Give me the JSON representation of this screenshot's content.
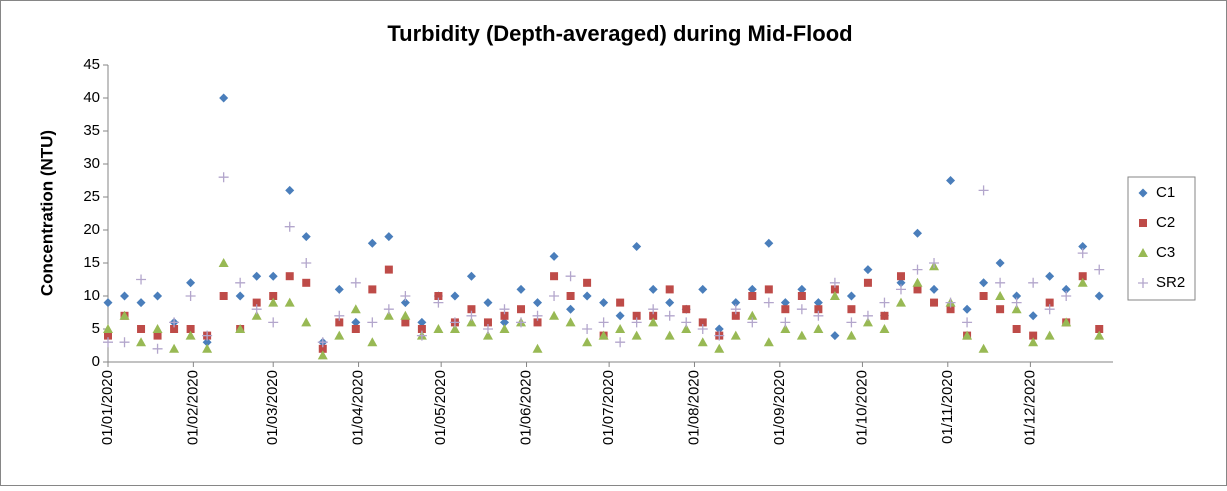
{
  "chart_data": {
    "type": "scatter",
    "title": "Turbidity (Depth-averaged) during Mid-Flood",
    "y_label": "Concentration (NTU)",
    "x": [
      "01/01/2020",
      "07/01/2020",
      "13/01/2020",
      "19/01/2020",
      "25/01/2020",
      "31/01/2020",
      "06/02/2020",
      "12/02/2020",
      "18/02/2020",
      "24/02/2020",
      "01/03/2020",
      "07/03/2020",
      "13/03/2020",
      "19/03/2020",
      "25/03/2020",
      "31/03/2020",
      "06/04/2020",
      "12/04/2020",
      "18/04/2020",
      "24/04/2020",
      "30/04/2020",
      "06/05/2020",
      "12/05/2020",
      "18/05/2020",
      "24/05/2020",
      "30/05/2020",
      "05/06/2020",
      "11/06/2020",
      "17/06/2020",
      "23/06/2020",
      "29/06/2020",
      "05/07/2020",
      "11/07/2020",
      "17/07/2020",
      "23/07/2020",
      "29/07/2020",
      "04/08/2020",
      "10/08/2020",
      "16/08/2020",
      "22/08/2020",
      "28/08/2020",
      "03/09/2020",
      "09/09/2020",
      "15/09/2020",
      "21/09/2020",
      "27/09/2020",
      "03/10/2020",
      "09/10/2020",
      "15/10/2020",
      "21/10/2020",
      "27/10/2020",
      "02/11/2020",
      "08/11/2020",
      "14/11/2020",
      "20/11/2020",
      "26/11/2020",
      "02/12/2020",
      "08/12/2020",
      "14/12/2020",
      "20/12/2020",
      "26/12/2020"
    ],
    "series": [
      {
        "name": "C1",
        "color": "#4a7ebb",
        "marker": "diamond",
        "values": [
          9,
          10,
          9,
          10,
          6,
          12,
          3,
          40,
          10,
          13,
          13,
          26,
          19,
          3,
          11,
          6,
          18,
          19,
          9,
          6,
          10,
          10,
          13,
          9,
          6,
          11,
          9,
          16,
          8,
          10,
          9,
          7,
          17.5,
          11,
          9,
          8,
          11,
          5,
          9,
          11,
          18,
          9,
          11,
          9,
          4,
          10,
          14,
          7,
          12,
          19.5,
          11,
          27.5,
          8,
          12,
          15,
          10,
          7,
          13,
          11,
          17.5,
          10
        ]
      },
      {
        "name": "C2",
        "color": "#be4b48",
        "marker": "square",
        "values": [
          4,
          7,
          5,
          4,
          5,
          5,
          4,
          10,
          5,
          9,
          10,
          13,
          12,
          2,
          6,
          5,
          11,
          14,
          6,
          5,
          10,
          6,
          8,
          6,
          7,
          8,
          6,
          13,
          10,
          12,
          4,
          9,
          7,
          7,
          11,
          8,
          6,
          4,
          7,
          10,
          11,
          8,
          10,
          8,
          11,
          8,
          12,
          7,
          13,
          11,
          9,
          8,
          4,
          10,
          8,
          5,
          4,
          9,
          6,
          13,
          5
        ]
      },
      {
        "name": "C3",
        "color": "#98b954",
        "marker": "triangle",
        "values": [
          5,
          7,
          3,
          5,
          2,
          4,
          2,
          15,
          5,
          7,
          9,
          9,
          6,
          1,
          4,
          8,
          3,
          7,
          7,
          4,
          5,
          5,
          6,
          4,
          5,
          6,
          2,
          7,
          6,
          3,
          4,
          5,
          4,
          6,
          4,
          5,
          3,
          2,
          4,
          7,
          3,
          5,
          4,
          5,
          10,
          4,
          6,
          5,
          9,
          12,
          14.5,
          9,
          4,
          2,
          10,
          8,
          3,
          4,
          6,
          12,
          4
        ]
      },
      {
        "name": "SR2",
        "color": "#b3a6cc",
        "marker": "plus",
        "values": [
          3,
          3,
          12.5,
          2,
          6,
          10,
          4,
          28,
          12,
          8,
          6,
          20.5,
          15,
          3,
          7,
          12,
          6,
          8,
          10,
          4,
          9,
          6,
          7,
          5,
          8,
          6,
          7,
          10,
          13,
          5,
          6,
          3,
          6,
          8,
          7,
          6,
          5,
          4,
          8,
          6,
          9,
          6,
          8,
          7,
          12,
          6,
          7,
          9,
          11,
          14,
          15,
          9,
          6,
          26,
          12,
          9,
          12,
          8,
          10,
          16.5,
          14
        ]
      }
    ],
    "xlim": [
      "01/01/2020",
      "31/12/2020"
    ],
    "xticks": [
      "01/01/2020",
      "01/02/2020",
      "01/03/2020",
      "01/04/2020",
      "01/05/2020",
      "01/06/2020",
      "01/07/2020",
      "01/08/2020",
      "01/09/2020",
      "01/10/2020",
      "01/11/2020",
      "01/12/2020"
    ],
    "ylim": [
      0,
      45
    ],
    "yticks": [
      0,
      5,
      10,
      15,
      20,
      25,
      30,
      35,
      40,
      45
    ],
    "grid": false,
    "legend": "right"
  }
}
